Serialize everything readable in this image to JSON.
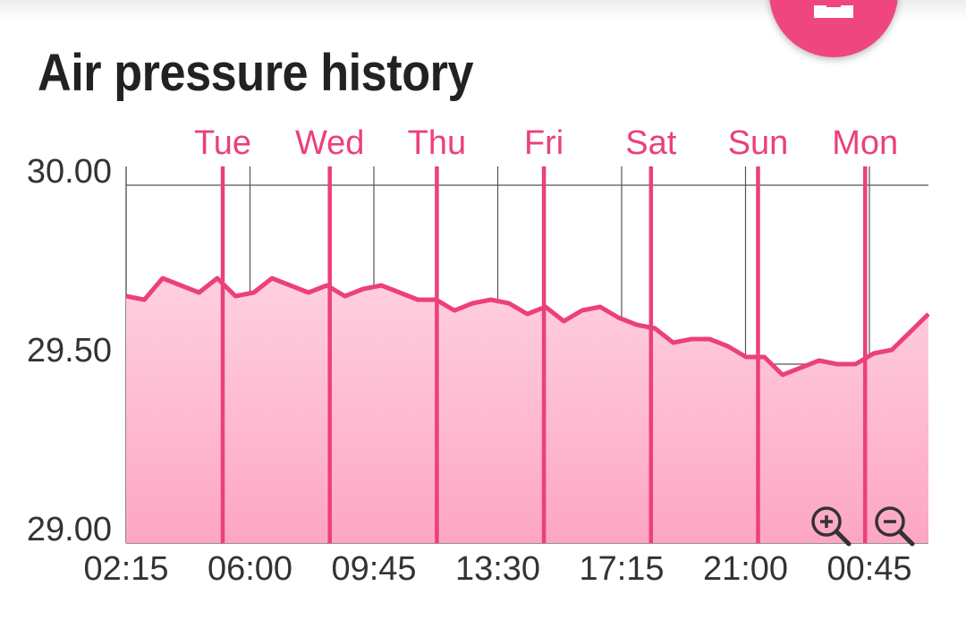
{
  "header": {
    "title": "Air pressure history"
  },
  "colors": {
    "accent": "#f0467f",
    "line": "#ec407a",
    "fill": "#f8a9c6",
    "grid": "#555555",
    "text": "#333333"
  },
  "controls": {
    "zoom_in": "zoom-in-icon",
    "zoom_out": "zoom-out-icon",
    "fab": "fab-button"
  },
  "chart_data": {
    "type": "area",
    "title": "Air pressure history",
    "xlabel": "",
    "ylabel": "",
    "ylim": [
      29.0,
      30.0
    ],
    "y_ticks": [
      "30.00",
      "29.50",
      "29.00"
    ],
    "x_ticks": [
      "02:15",
      "06:00",
      "09:45",
      "13:30",
      "17:15",
      "21:00",
      "00:45"
    ],
    "day_markers": [
      "Tue",
      "Wed",
      "Thu",
      "Fri",
      "Sat",
      "Sun",
      "Mon"
    ],
    "grid": true,
    "series": [
      {
        "values": [
          29.69,
          29.68,
          29.74,
          29.72,
          29.7,
          29.74,
          29.69,
          29.7,
          29.74,
          29.72,
          29.7,
          29.72,
          29.69,
          29.71,
          29.72,
          29.7,
          29.68,
          29.68,
          29.65,
          29.67,
          29.68,
          29.67,
          29.64,
          29.66,
          29.62,
          29.65,
          29.66,
          29.63,
          29.61,
          29.6,
          29.56,
          29.57,
          29.57,
          29.55,
          29.52,
          29.52,
          29.47,
          29.49,
          29.51,
          29.5,
          29.5,
          29.53,
          29.54,
          29.59,
          29.64
        ]
      }
    ]
  }
}
